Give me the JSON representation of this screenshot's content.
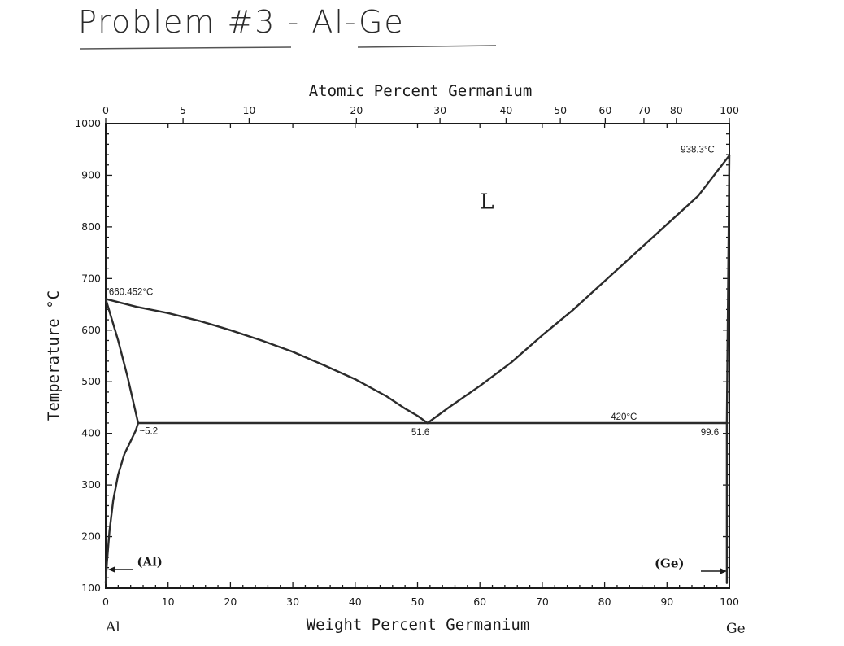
{
  "header": {
    "title": "Problem #3 - Al-Ge"
  },
  "chart_data": {
    "type": "line",
    "title": "",
    "xlabel": "Weight Percent Germanium",
    "x2label": "Atomic Percent Germanium",
    "ylabel": "Temperature °C",
    "xlim": [
      0,
      100
    ],
    "ylim": [
      100,
      1000
    ],
    "x_ticks": [
      0,
      10,
      20,
      30,
      40,
      50,
      60,
      70,
      80,
      90,
      100
    ],
    "y_ticks": [
      100,
      200,
      300,
      400,
      500,
      600,
      700,
      800,
      900,
      1000
    ],
    "x2_ticks": [
      {
        "label": "0",
        "wt": 0
      },
      {
        "label": "5",
        "wt": 12.4
      },
      {
        "label": "10",
        "wt": 23
      },
      {
        "label": "20",
        "wt": 40.2
      },
      {
        "label": "30",
        "wt": 53.6
      },
      {
        "label": "40",
        "wt": 64.2
      },
      {
        "label": "50",
        "wt": 72.9
      },
      {
        "label": "60",
        "wt": 80.1
      },
      {
        "label": "70",
        "wt": 86.3
      },
      {
        "label": "80",
        "wt": 91.5
      },
      {
        "label": "100",
        "wt": 100
      }
    ],
    "grid": false,
    "series": [
      {
        "points": [
          [
            0,
            660.452
          ],
          [
            5,
            645
          ],
          [
            10,
            633
          ],
          [
            15,
            618
          ],
          [
            20,
            600
          ],
          [
            25,
            580
          ],
          [
            30,
            558
          ],
          [
            35,
            532
          ],
          [
            40,
            505
          ],
          [
            45,
            472
          ],
          [
            48,
            448
          ],
          [
            50,
            434
          ],
          [
            51.6,
            420
          ]
        ]
      },
      {
        "points": [
          [
            51.6,
            420
          ],
          [
            55,
            450
          ],
          [
            60,
            492
          ],
          [
            65,
            537
          ],
          [
            70,
            590
          ],
          [
            75,
            640
          ],
          [
            80,
            695
          ],
          [
            85,
            750
          ],
          [
            90,
            805
          ],
          [
            95,
            860
          ],
          [
            100,
            938.3
          ]
        ]
      },
      {
        "points": [
          [
            0,
            660.452
          ],
          [
            2,
            580
          ],
          [
            3.5,
            510
          ],
          [
            5.2,
            420
          ]
        ]
      },
      {
        "points": [
          [
            5.2,
            420
          ],
          [
            4.8,
            405
          ],
          [
            4,
            385
          ],
          [
            3,
            360
          ],
          [
            2,
            320
          ],
          [
            1.2,
            270
          ],
          [
            0.6,
            210
          ],
          [
            0.2,
            150
          ],
          [
            0,
            110
          ]
        ]
      },
      {
        "points": [
          [
            5.2,
            420
          ],
          [
            99.6,
            420
          ]
        ]
      },
      {
        "points": [
          [
            99.6,
            420
          ],
          [
            99.6,
            110
          ]
        ]
      },
      {
        "points": [
          [
            100,
            938.3
          ],
          [
            99.6,
            420
          ]
        ]
      }
    ],
    "annotations": [
      {
        "text": "660.452°C",
        "x": 0.5,
        "y": 668
      },
      {
        "text": "938.3°C",
        "x": 92.2,
        "y": 944
      },
      {
        "text": "~5.2",
        "x": 5.4,
        "y": 399
      },
      {
        "text": "51.6",
        "x": 49,
        "y": 396
      },
      {
        "text": "420°C",
        "x": 81,
        "y": 426
      },
      {
        "text": "99.6",
        "x": 95.4,
        "y": 396
      }
    ],
    "phase_labels": [
      {
        "text": "L",
        "x": 60,
        "y": 835
      },
      {
        "text": "(Al)",
        "x": 5,
        "y": 143
      },
      {
        "text": "(Ge)",
        "x": 88,
        "y": 140
      }
    ],
    "corner_labels": {
      "left": "Al",
      "right": "Ge"
    }
  }
}
